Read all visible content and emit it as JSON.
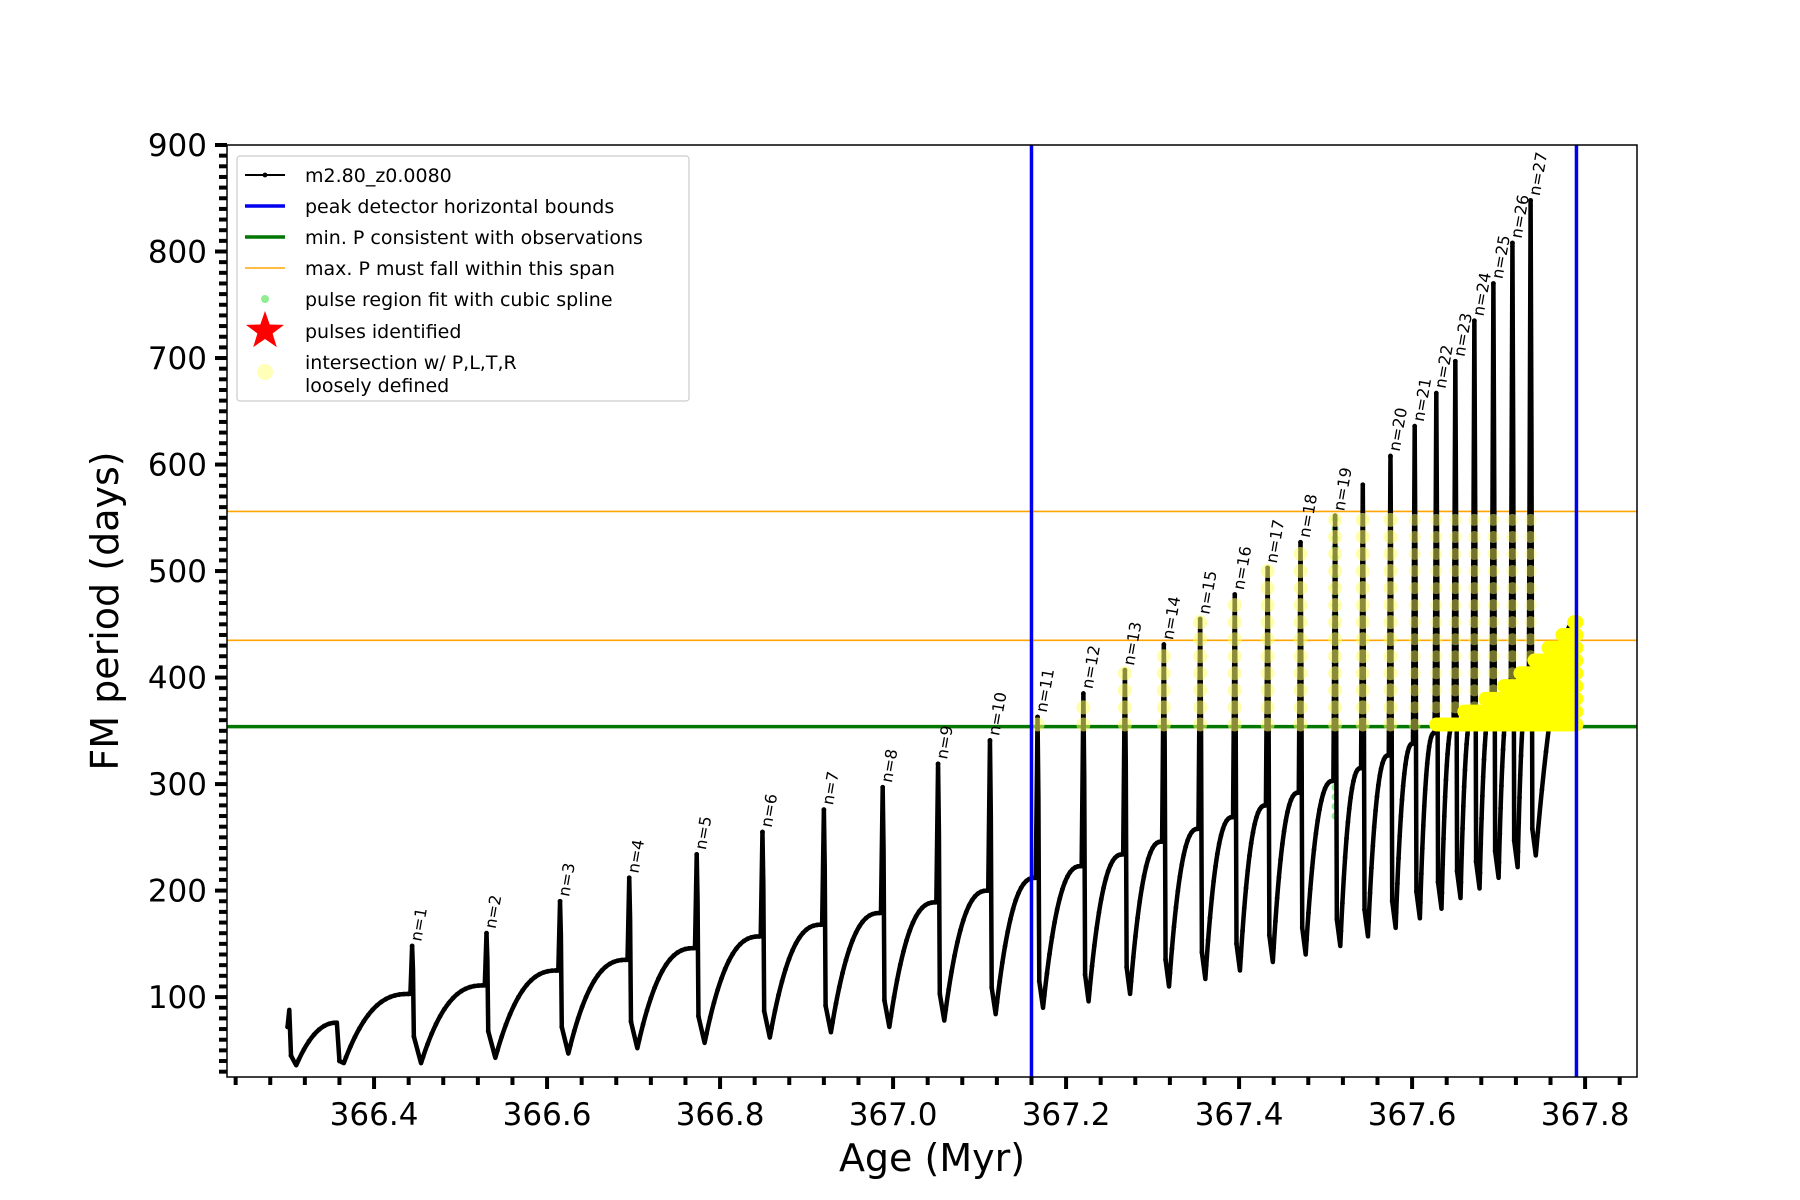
{
  "chart_data": {
    "type": "line",
    "xlabel": "Age (Myr)",
    "ylabel": "FM period (days)",
    "xlim": [
      366.23,
      367.86
    ],
    "ylim": [
      25,
      900
    ],
    "xticks": [
      366.4,
      366.6,
      366.8,
      367.0,
      367.2,
      367.4,
      367.6,
      367.8
    ],
    "xtick_labels": [
      "366.4",
      "366.6",
      "366.8",
      "367.0",
      "367.2",
      "367.4",
      "367.6",
      "367.8"
    ],
    "yticks": [
      100,
      200,
      300,
      400,
      500,
      600,
      700,
      800,
      900
    ],
    "ytick_labels": [
      "100",
      "200",
      "300",
      "400",
      "500",
      "600",
      "700",
      "800",
      "900"
    ],
    "grid": false,
    "legend_position": "top-left",
    "legend": [
      {
        "label": "m2.80_z0.0080",
        "kind": "line-marker",
        "color": "#000000"
      },
      {
        "label": "peak detector horizontal bounds",
        "kind": "line",
        "color": "#0000ee"
      },
      {
        "label": "min. P consistent with observations",
        "kind": "line",
        "color": "#007700"
      },
      {
        "label": "max. P must fall within this span",
        "kind": "thin-line",
        "color": "#ffa500"
      },
      {
        "label": "pulse region fit with cubic spline",
        "kind": "dot",
        "color": "#90ee90"
      },
      {
        "label": "pulses identified",
        "kind": "star",
        "color": "#ff0000"
      },
      {
        "label": "intersection w/ P,L,T,R",
        "label2": "loosely defined",
        "kind": "big-dot",
        "color": "#ffff99"
      }
    ],
    "vertical_lines": [
      {
        "x": 367.16,
        "color": "#0000ee"
      },
      {
        "x": 367.79,
        "color": "#0000ee"
      }
    ],
    "horizontal_lines": [
      {
        "y": 354,
        "color": "#007700"
      },
      {
        "y": 435,
        "color": "#ffa500"
      },
      {
        "y": 556,
        "color": "#ffa500"
      }
    ],
    "series": [
      {
        "name": "m2.80_z0.0080",
        "color": "#000000",
        "start": {
          "x": 366.3,
          "y": 72
        },
        "pulses": [
          {
            "x": 366.444,
            "peak": 148,
            "post_min": 38,
            "pre_max": 103,
            "label": "n=1"
          },
          {
            "x": 366.53,
            "peak": 160,
            "post_min": 43,
            "pre_max": 111,
            "label": "n=2"
          },
          {
            "x": 366.615,
            "peak": 190,
            "post_min": 47,
            "pre_max": 125,
            "label": "n=3"
          },
          {
            "x": 366.695,
            "peak": 212,
            "post_min": 52,
            "pre_max": 135,
            "label": "n=4"
          },
          {
            "x": 366.773,
            "peak": 234,
            "post_min": 57,
            "pre_max": 146,
            "label": "n=5"
          },
          {
            "x": 366.849,
            "peak": 255,
            "post_min": 62,
            "pre_max": 157,
            "label": "n=6"
          },
          {
            "x": 366.92,
            "peak": 276,
            "post_min": 67,
            "pre_max": 168,
            "label": "n=7"
          },
          {
            "x": 366.988,
            "peak": 297,
            "post_min": 72,
            "pre_max": 179,
            "label": "n=8"
          },
          {
            "x": 367.052,
            "peak": 319,
            "post_min": 78,
            "pre_max": 189,
            "label": "n=9"
          },
          {
            "x": 367.112,
            "peak": 341,
            "post_min": 84,
            "pre_max": 200,
            "label": "n=10"
          },
          {
            "x": 367.167,
            "peak": 363,
            "post_min": 90,
            "pre_max": 212,
            "label": "n=11"
          },
          {
            "x": 367.22,
            "peak": 385,
            "post_min": 96,
            "pre_max": 223,
            "label": "n=12"
          },
          {
            "x": 367.268,
            "peak": 407,
            "post_min": 103,
            "pre_max": 234,
            "label": "n=13"
          },
          {
            "x": 367.313,
            "peak": 431,
            "post_min": 110,
            "pre_max": 246,
            "label": "n=14"
          },
          {
            "x": 367.355,
            "peak": 455,
            "post_min": 117,
            "pre_max": 258,
            "label": "n=15"
          },
          {
            "x": 367.395,
            "peak": 478,
            "post_min": 125,
            "pre_max": 269,
            "label": "n=16"
          },
          {
            "x": 367.433,
            "peak": 503,
            "post_min": 133,
            "pre_max": 280,
            "label": "n=17"
          },
          {
            "x": 367.471,
            "peak": 527,
            "post_min": 140,
            "pre_max": 292,
            "label": "n=18"
          },
          {
            "x": 367.511,
            "peak": 552,
            "post_min": 148,
            "pre_max": 303,
            "label": "n=19"
          },
          {
            "x": 367.543,
            "peak": 581,
            "post_min": 157,
            "pre_max": 315,
            "label": ""
          },
          {
            "x": 367.575,
            "peak": 608,
            "post_min": 165,
            "pre_max": 327,
            "label": "n=20"
          },
          {
            "x": 367.603,
            "peak": 636,
            "post_min": 174,
            "pre_max": 338,
            "label": "n=21"
          },
          {
            "x": 367.628,
            "peak": 667,
            "post_min": 183,
            "pre_max": 348,
            "label": "n=22"
          },
          {
            "x": 367.65,
            "peak": 697,
            "post_min": 193,
            "pre_max": 357,
            "label": "n=23"
          },
          {
            "x": 367.672,
            "peak": 735,
            "post_min": 202,
            "pre_max": 366,
            "label": "n=24"
          },
          {
            "x": 367.694,
            "peak": 770,
            "post_min": 212,
            "pre_max": 376,
            "label": "n=25"
          },
          {
            "x": 367.716,
            "peak": 808,
            "post_min": 222,
            "pre_max": 385,
            "label": "n=26"
          },
          {
            "x": 367.737,
            "peak": 848,
            "post_min": 233,
            "pre_max": 395,
            "label": "n=27"
          }
        ],
        "end": {
          "x": 367.79,
          "y": 455
        }
      }
    ]
  }
}
